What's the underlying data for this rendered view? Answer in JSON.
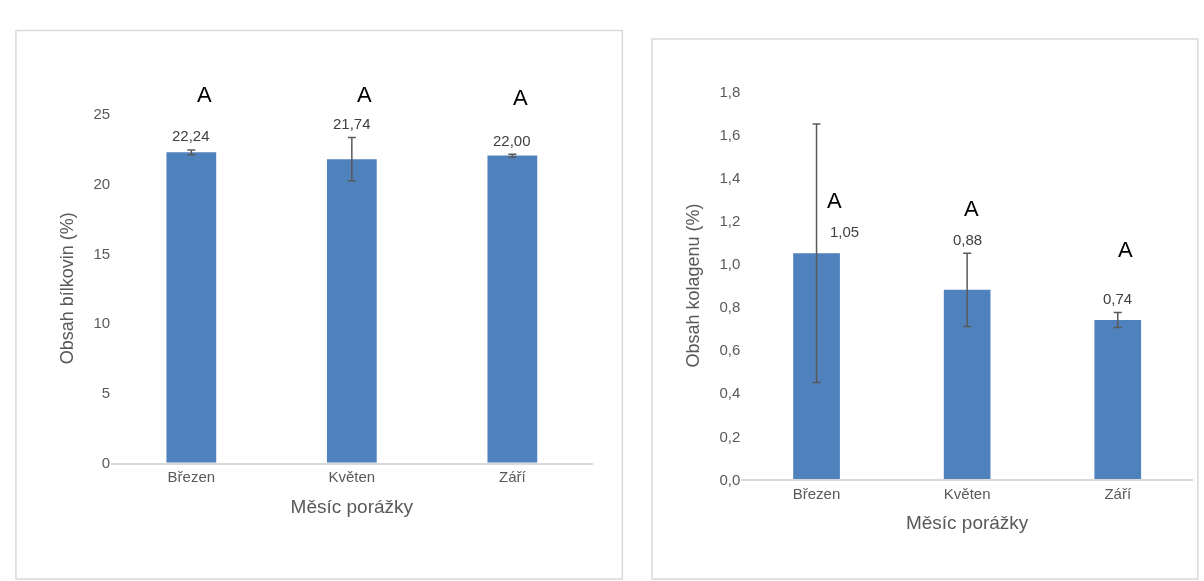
{
  "chart_data": [
    {
      "type": "bar",
      "xlabel": "Měsíc porážky",
      "ylabel": "Obsah bílkovin (%)",
      "categories": [
        "Březen",
        "Květen",
        "Září"
      ],
      "values": [
        22.24,
        21.74,
        22.0
      ],
      "color": "#4f81bd",
      "errors": [
        0.17,
        1.55,
        0.1
      ],
      "value_labels": [
        "22,24",
        "21,74",
        "22,00"
      ],
      "ylim": [
        0,
        25
      ],
      "yticks": [
        0,
        5,
        10,
        15,
        20,
        25
      ],
      "annotations": [
        "A",
        "A",
        "A"
      ]
    },
    {
      "type": "bar",
      "xlabel": "Měsíc porážky",
      "ylabel": "Obsah kolagenu (%)",
      "categories": [
        "Březen",
        "Květen",
        "Září"
      ],
      "values": [
        1.05,
        0.88,
        0.74
      ],
      "color": "#4f81bd",
      "errors": [
        0.6,
        0.17,
        0.035
      ],
      "value_labels": [
        "1,05",
        "0,88",
        "0,74"
      ],
      "ylim": [
        0,
        1.8
      ],
      "yticks": [
        {
          "value": 0,
          "label": "0,0"
        },
        {
          "value": 0.2,
          "label": "0,2"
        },
        {
          "value": 0.4,
          "label": "0,4"
        },
        {
          "value": 0.6,
          "label": "0,6"
        },
        {
          "value": 0.8,
          "label": "0,8"
        },
        {
          "value": 1.0,
          "label": "1,0"
        },
        {
          "value": 1.2,
          "label": "1,2"
        },
        {
          "value": 1.4,
          "label": "1,4"
        },
        {
          "value": 1.6,
          "label": "1,6"
        },
        {
          "value": 1.8,
          "label": "1,8"
        }
      ],
      "annotations": [
        "A",
        "A",
        "A"
      ]
    }
  ]
}
